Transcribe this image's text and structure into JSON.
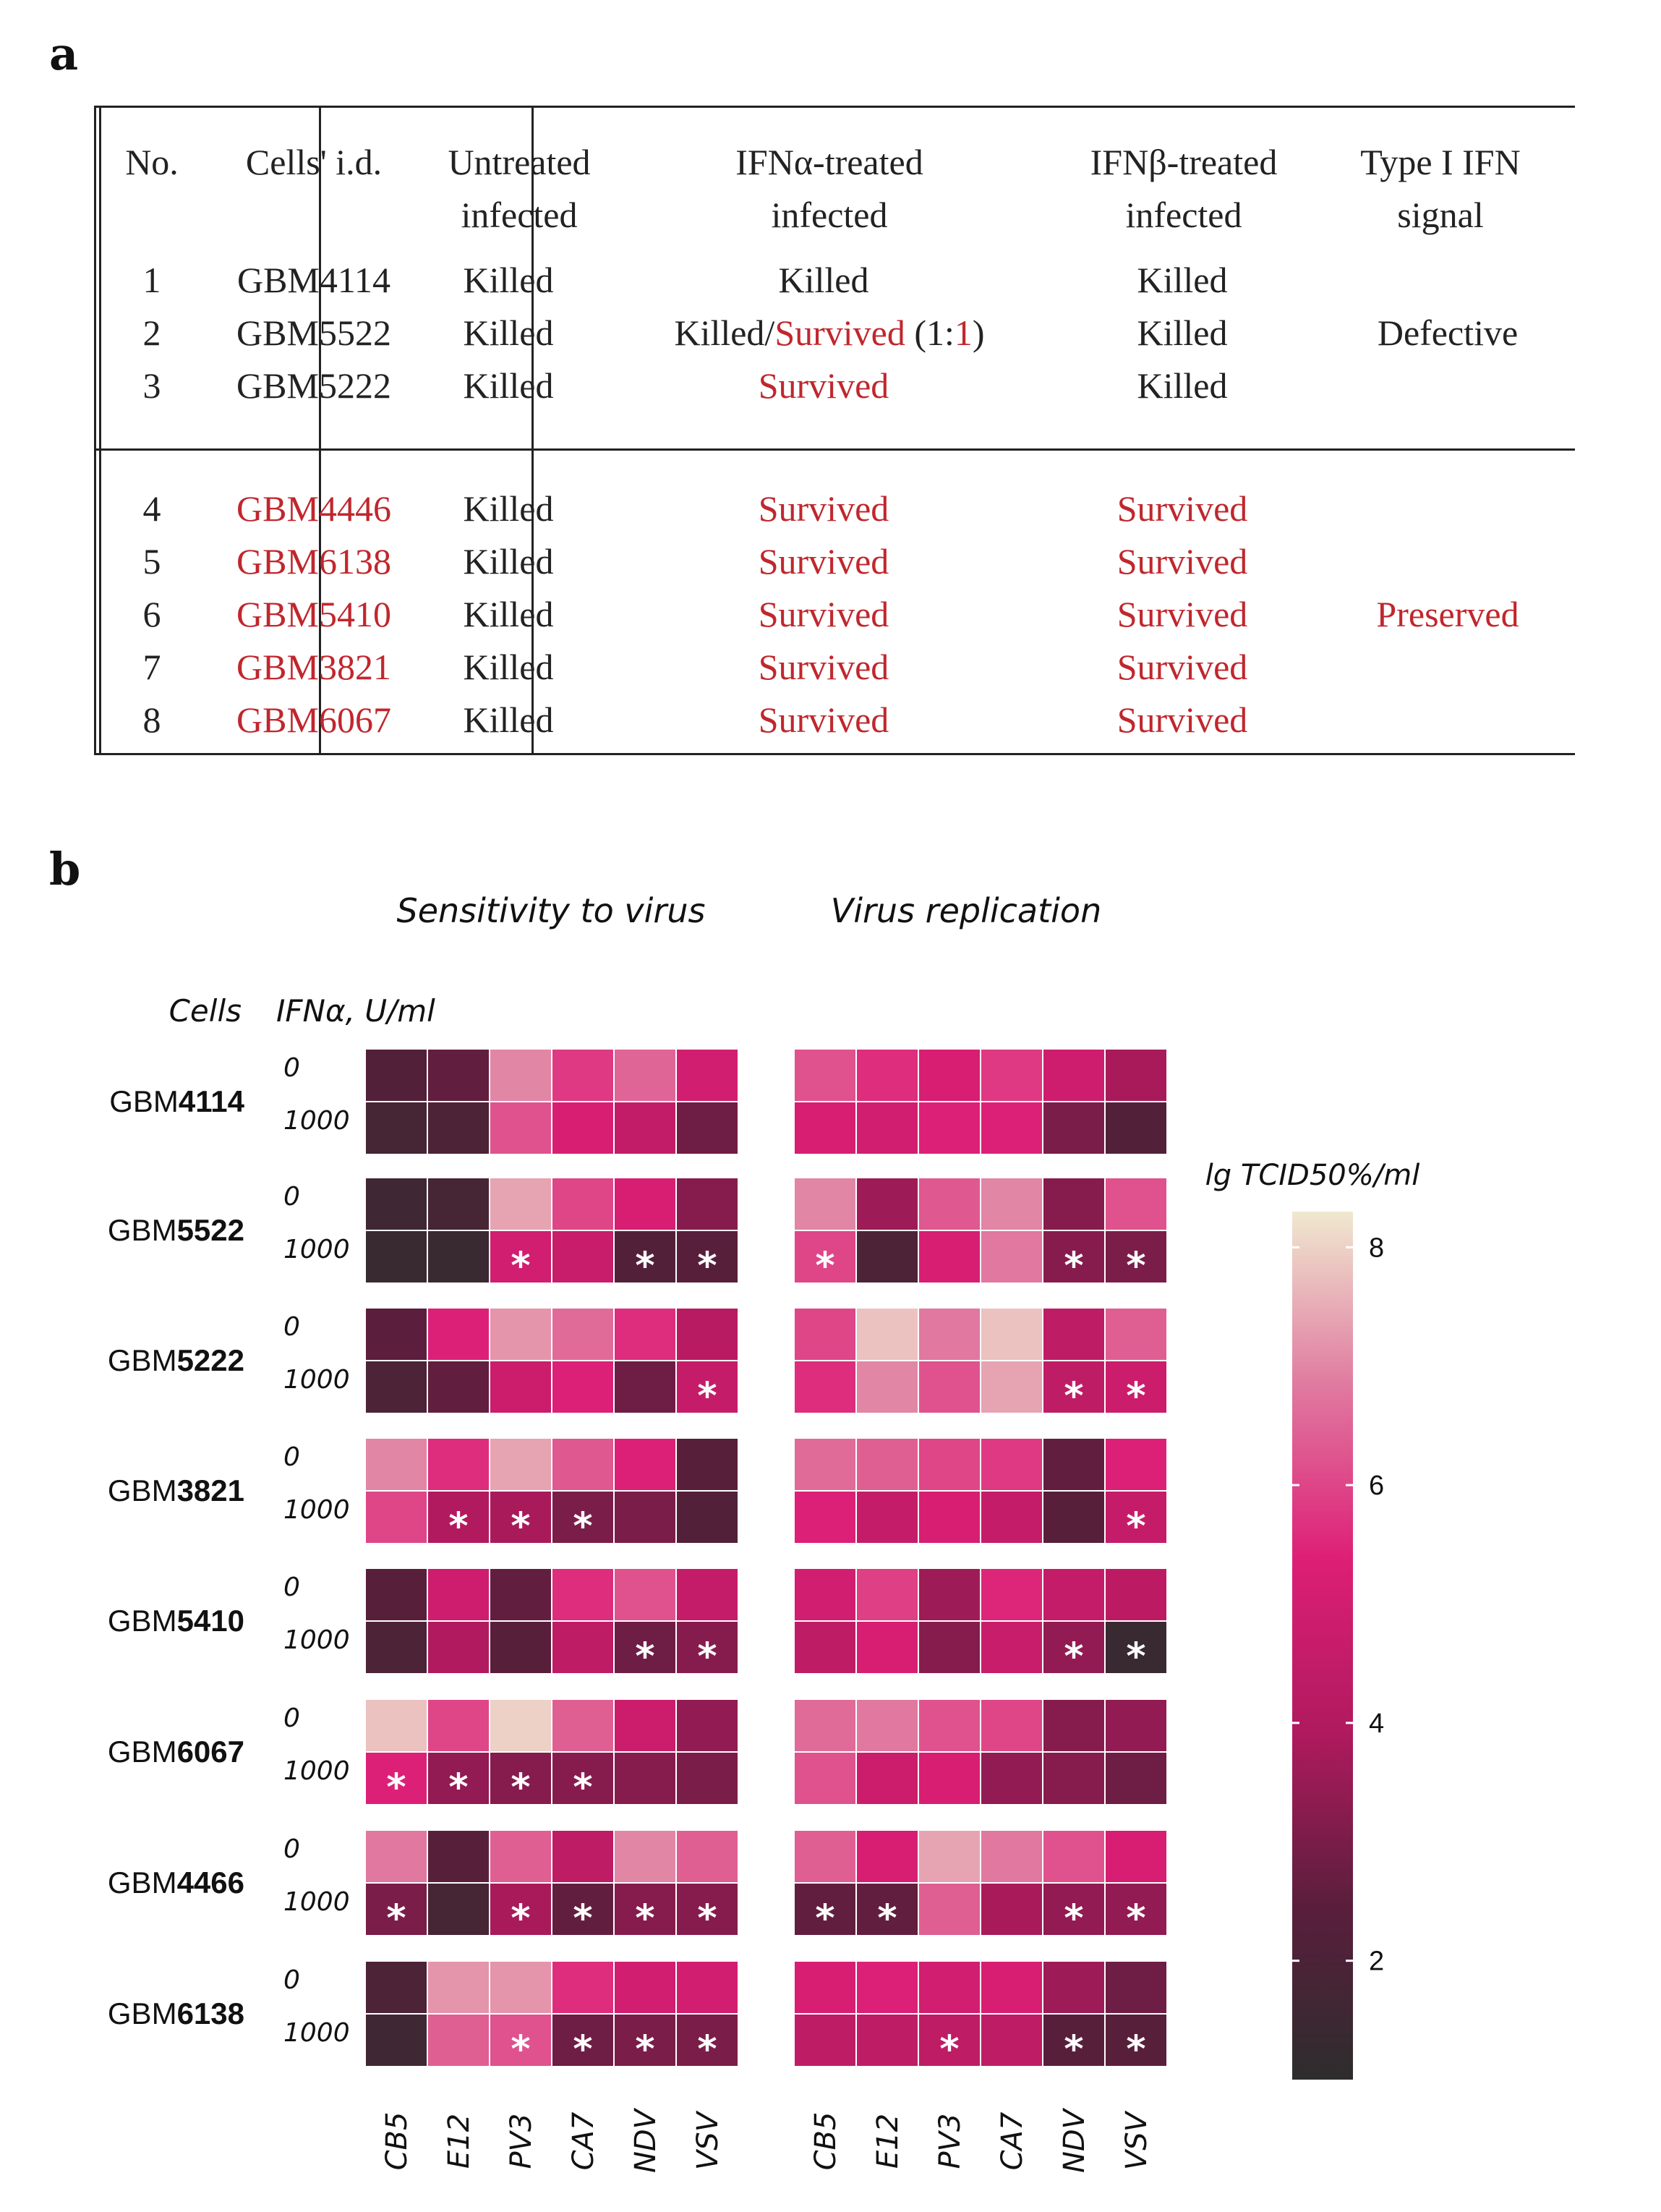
{
  "panel_a_label": "a",
  "panel_b_label": "b",
  "table": {
    "headers": [
      "No.",
      "Cells' i.d.",
      "Untreated infected",
      "IFNα-treated infected",
      "IFNβ-treated infected",
      "Type I IFN signal"
    ],
    "header_lines": [
      [
        "No."
      ],
      [
        "Cells' i.d."
      ],
      [
        "Untreated",
        "infected"
      ],
      [
        "IFNα-treated",
        "infected"
      ],
      [
        "IFNβ-treated",
        "infected"
      ],
      [
        "Type I IFN",
        "signal"
      ]
    ],
    "group1": {
      "signal": "Defective",
      "rows": [
        {
          "no": "1",
          "id": "GBM4114",
          "untreated": "Killed",
          "ifna": "Killed",
          "ifnb": "Killed"
        },
        {
          "no": "2",
          "id": "GBM5522",
          "untreated": "Killed",
          "ifna_parts": [
            "Killed/",
            "Survived",
            " (1:",
            "1",
            ")"
          ],
          "ifnb": "Killed"
        },
        {
          "no": "3",
          "id": "GBM5222",
          "untreated": "Killed",
          "ifna": "Survived",
          "ifnb": "Killed"
        }
      ]
    },
    "group2": {
      "signal": "Preserved",
      "rows": [
        {
          "no": "4",
          "id": "GBM4446",
          "untreated": "Killed",
          "ifna": "Survived",
          "ifnb": "Survived"
        },
        {
          "no": "5",
          "id": "GBM6138",
          "untreated": "Killed",
          "ifna": "Survived",
          "ifnb": "Survived"
        },
        {
          "no": "6",
          "id": "GBM5410",
          "untreated": "Killed",
          "ifna": "Survived",
          "ifnb": "Survived"
        },
        {
          "no": "7",
          "id": "GBM3821",
          "untreated": "Killed",
          "ifna": "Survived",
          "ifnb": "Survived"
        },
        {
          "no": "8",
          "id": "GBM6067",
          "untreated": "Killed",
          "ifna": "Survived",
          "ifnb": "Survived"
        }
      ]
    },
    "colors": {
      "red": "#c0272d"
    }
  },
  "chart_data": {
    "type": "heatmap",
    "panel_titles": [
      "Sensitivity to virus",
      "Virus replication"
    ],
    "row_header": "Cells",
    "dose_header": "IFNα, U/ml",
    "viruses": [
      "CB5",
      "E12",
      "PV3",
      "CA7",
      "NDV",
      "VSV"
    ],
    "doses": [
      "0",
      "1000"
    ],
    "colorbar": {
      "title": "lg TCID50%/ml",
      "ticks": [
        2,
        4,
        6,
        8
      ],
      "range": [
        1,
        8.3
      ],
      "colors": [
        "#2d2d2d",
        "#5a1e3c",
        "#b01a5e",
        "#dd1f76",
        "#e07aa0",
        "#f0e8d0"
      ]
    },
    "cells": [
      {
        "name": "GBM4114",
        "name_parts": [
          "GBM",
          "4114"
        ],
        "sensitivity": [
          [
            2.2,
            2.6,
            7.0,
            5.8,
            6.5,
            5.0
          ],
          [
            1.8,
            2.0,
            6.2,
            5.2,
            4.5,
            2.8
          ]
        ],
        "replication": [
          [
            6.2,
            5.6,
            5.2,
            5.8,
            4.9,
            3.8
          ],
          [
            5.2,
            5.0,
            5.4,
            5.4,
            3.0,
            2.2
          ]
        ],
        "stars_s": [
          [],
          []
        ],
        "stars_r": [
          [],
          []
        ]
      },
      {
        "name": "GBM5522",
        "name_parts": [
          "GBM",
          "5522"
        ],
        "sensitivity": [
          [
            1.6,
            1.8,
            7.4,
            6.0,
            5.2,
            3.2
          ],
          [
            1.4,
            1.4,
            5.0,
            4.7,
            2.2,
            2.4
          ]
        ],
        "replication": [
          [
            7.0,
            3.6,
            6.3,
            7.0,
            3.2,
            6.2
          ],
          [
            6.0,
            2.0,
            5.2,
            6.8,
            3.2,
            3.0
          ]
        ],
        "stars_s": [
          [],
          [
            2,
            4,
            5
          ]
        ],
        "stars_r": [
          [],
          [
            0,
            4,
            5
          ]
        ]
      },
      {
        "name": "GBM5222",
        "name_parts": [
          "GBM",
          "5222"
        ],
        "sensitivity": [
          [
            2.5,
            5.4,
            7.2,
            6.6,
            5.6,
            4.2
          ],
          [
            2.0,
            2.6,
            4.8,
            5.4,
            2.8,
            4.6
          ]
        ],
        "replication": [
          [
            6.0,
            7.8,
            6.8,
            7.8,
            4.4,
            6.4
          ],
          [
            5.6,
            7.0,
            6.2,
            7.4,
            4.4,
            4.8
          ]
        ],
        "stars_s": [
          [],
          [
            5
          ]
        ],
        "stars_r": [
          [],
          [
            4,
            5
          ]
        ]
      },
      {
        "name": "GBM3821",
        "name_parts": [
          "GBM",
          "3821"
        ],
        "sensitivity": [
          [
            7.0,
            5.6,
            7.4,
            6.3,
            5.4,
            2.4
          ],
          [
            6.0,
            4.0,
            3.8,
            3.0,
            3.0,
            2.2
          ]
        ],
        "replication": [
          [
            6.6,
            6.4,
            6.0,
            5.8,
            2.6,
            5.4
          ],
          [
            5.4,
            4.6,
            5.2,
            4.6,
            2.4,
            4.6
          ]
        ],
        "stars_s": [
          [],
          [
            1,
            2,
            3
          ]
        ],
        "stars_r": [
          [],
          [
            5
          ]
        ]
      },
      {
        "name": "GBM5410",
        "name_parts": [
          "GBM",
          "5410"
        ],
        "sensitivity": [
          [
            2.4,
            4.9,
            2.6,
            5.6,
            6.2,
            4.6
          ],
          [
            2.0,
            4.0,
            2.4,
            4.4,
            2.8,
            3.2
          ]
        ],
        "replication": [
          [
            5.0,
            5.9,
            3.6,
            5.5,
            4.6,
            4.3
          ],
          [
            4.4,
            5.2,
            3.2,
            4.7,
            3.4,
            1.4
          ]
        ],
        "stars_s": [
          [],
          [
            4,
            5
          ]
        ],
        "stars_r": [
          [],
          [
            4,
            5
          ]
        ]
      },
      {
        "name": "GBM6067",
        "name_parts": [
          "GBM",
          "6067"
        ],
        "sensitivity": [
          [
            7.8,
            6.0,
            8.0,
            6.4,
            4.8,
            3.4
          ],
          [
            5.4,
            3.4,
            3.2,
            3.2,
            3.2,
            3.0
          ]
        ],
        "replication": [
          [
            6.6,
            6.8,
            6.2,
            6.0,
            3.2,
            3.4
          ],
          [
            6.2,
            4.8,
            5.2,
            3.4,
            3.2,
            2.8
          ]
        ],
        "stars_s": [
          [],
          [
            0,
            1,
            2,
            3
          ]
        ],
        "stars_r": [
          [],
          []
        ]
      },
      {
        "name": "GBM4466",
        "name_parts": [
          "GBM",
          "4466"
        ],
        "sensitivity": [
          [
            6.8,
            2.4,
            6.4,
            4.4,
            7.0,
            6.4
          ],
          [
            3.0,
            1.8,
            3.8,
            2.6,
            3.2,
            3.2
          ]
        ],
        "replication": [
          [
            6.4,
            5.2,
            7.4,
            6.8,
            6.2,
            5.2
          ],
          [
            2.6,
            2.6,
            6.4,
            3.8,
            3.4,
            3.4
          ]
        ],
        "stars_s": [
          [],
          [
            0,
            2,
            3,
            4,
            5
          ]
        ],
        "stars_r": [
          [],
          [
            0,
            1,
            4,
            5
          ]
        ]
      },
      {
        "name": "GBM6138",
        "name_parts": [
          "GBM",
          "6138"
        ],
        "sensitivity": [
          [
            2.0,
            7.2,
            7.2,
            5.6,
            5.0,
            5.0
          ],
          [
            1.6,
            6.4,
            6.2,
            2.8,
            3.0,
            3.0
          ]
        ],
        "replication": [
          [
            5.2,
            5.4,
            5.0,
            5.2,
            3.6,
            2.8
          ],
          [
            4.4,
            4.4,
            4.4,
            4.4,
            2.4,
            2.4
          ]
        ],
        "stars_s": [
          [],
          [
            2,
            3,
            4,
            5
          ]
        ],
        "stars_r": [
          [],
          [
            2,
            4,
            5
          ]
        ]
      }
    ],
    "star_symbol": "*"
  }
}
